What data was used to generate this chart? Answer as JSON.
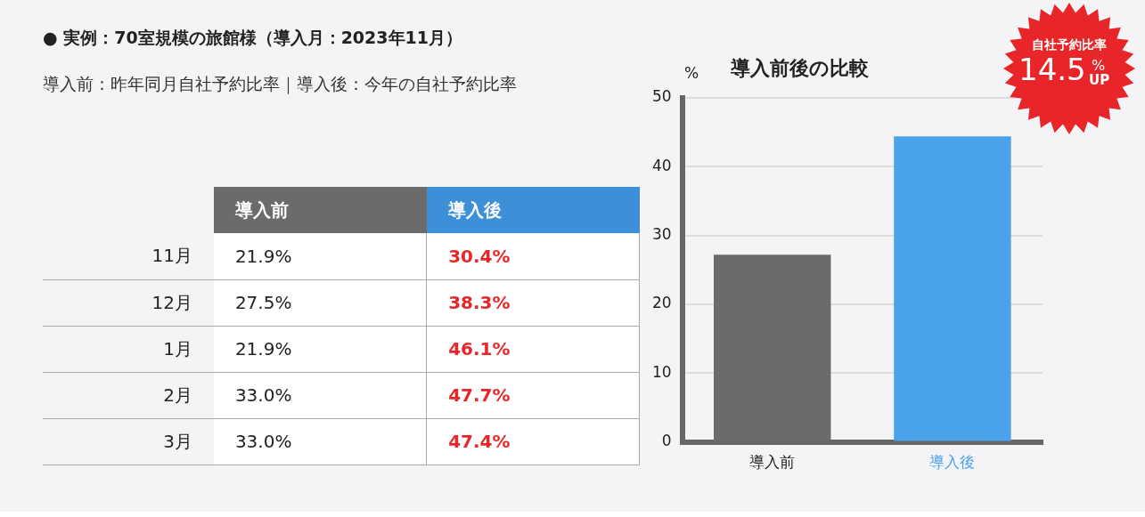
{
  "chart_data": [
    {
      "type": "other",
      "title": "● 実例：70室規模の旅館様（導入月：2023年11月）",
      "subtitle": "導入前：昨年同月自社予約比率｜導入後：今年の自社予約比率",
      "categories": [
        "11月",
        "12月",
        "1月",
        "2月",
        "3月"
      ],
      "series": [
        {
          "name": "導入前",
          "values": [
            21.9,
            27.5,
            21.9,
            33.0,
            33.0
          ],
          "value_labels": [
            "21.9%",
            "27.5%",
            "21.9%",
            "33.0%",
            "33.0%"
          ]
        },
        {
          "name": "導入後",
          "values": [
            30.4,
            38.3,
            46.1,
            47.7,
            47.4
          ],
          "value_labels": [
            "30.4%",
            "38.3%",
            "46.1%",
            "47.7%",
            "47.4%"
          ]
        }
      ]
    },
    {
      "type": "bar",
      "title": "導入前後の比較",
      "ylabel": "%",
      "categories": [
        "導入前",
        "導入後"
      ],
      "values": [
        27.2,
        44.4
      ],
      "colors": [
        "#6b6b6b",
        "#4aa3ea"
      ],
      "ylim": [
        0,
        50
      ],
      "yticks": [
        0,
        10,
        20,
        30,
        40,
        50
      ],
      "grid": "y",
      "annotations": [
        "自社予約比率",
        "14.5",
        "%",
        "UP"
      ]
    }
  ]
}
